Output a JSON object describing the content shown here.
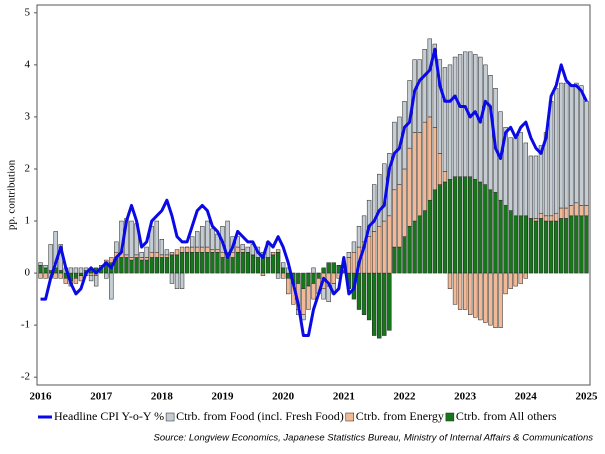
{
  "chart_data": {
    "type": "bar",
    "y_label": "pp. contribution",
    "source": "Source: Longview Economics, Japanese Statistics Bureau, Ministry of Internal Affairs & Communications",
    "categories": [
      "2016",
      null,
      null,
      null,
      null,
      null,
      null,
      null,
      null,
      null,
      null,
      null,
      "2017",
      null,
      null,
      null,
      null,
      null,
      null,
      null,
      null,
      null,
      null,
      null,
      "2018",
      null,
      null,
      null,
      null,
      null,
      null,
      null,
      null,
      null,
      null,
      null,
      "2019",
      null,
      null,
      null,
      null,
      null,
      null,
      null,
      null,
      null,
      null,
      null,
      "2020",
      null,
      null,
      null,
      null,
      null,
      null,
      null,
      null,
      null,
      null,
      null,
      "2021",
      null,
      null,
      null,
      null,
      null,
      null,
      null,
      null,
      null,
      null,
      null,
      "2022",
      null,
      null,
      null,
      null,
      null,
      null,
      null,
      null,
      null,
      null,
      null,
      "2023",
      null,
      null,
      null,
      null,
      null,
      null,
      null,
      null,
      null,
      null,
      null,
      "2024",
      null,
      null,
      null,
      null,
      null,
      null,
      null,
      null,
      null,
      null,
      null,
      "2025"
    ],
    "ylim": [
      -2.15,
      5.15
    ],
    "yticks": [
      -2,
      -1,
      0,
      1,
      2,
      3,
      4,
      5
    ],
    "legend": "bottom",
    "series": [
      {
        "name": "Headline CPI Y-o-Y %",
        "type": "line",
        "color": "#0a0ae6",
        "values": [
          -0.5,
          -0.5,
          -0.1,
          0.2,
          0.5,
          0.1,
          -0.2,
          -0.4,
          -0.3,
          0.0,
          0.1,
          0.0,
          0.1,
          0.2,
          0.1,
          0.3,
          0.4,
          1.0,
          1.3,
          1.0,
          0.5,
          0.6,
          1.0,
          1.1,
          1.2,
          1.4,
          1.1,
          0.7,
          0.6,
          0.6,
          0.9,
          1.2,
          1.3,
          1.2,
          0.9,
          0.8,
          0.6,
          0.3,
          0.5,
          0.8,
          0.7,
          0.6,
          0.6,
          0.4,
          0.3,
          0.6,
          0.5,
          0.7,
          0.5,
          0.2,
          -0.2,
          -0.6,
          -1.2,
          -1.2,
          -0.7,
          -0.4,
          -0.1,
          -0.2,
          -0.4,
          -0.3,
          0.3,
          -0.4,
          -0.3,
          0.2,
          0.5,
          0.9,
          1.0,
          1.2,
          1.3,
          2.0,
          2.3,
          2.4,
          2.8,
          2.9,
          3.5,
          3.7,
          3.8,
          3.9,
          4.3,
          3.6,
          3.3,
          3.3,
          3.4,
          3.2,
          3.2,
          3.0,
          3.1,
          2.9,
          3.3,
          3.2,
          2.4,
          2.2,
          2.7,
          2.8,
          2.6,
          2.8,
          2.9,
          2.6,
          2.4,
          2.3,
          2.6,
          3.4,
          3.6,
          4.0,
          3.7,
          3.6,
          3.6,
          3.5,
          3.3
        ]
      },
      {
        "name": "Ctrb. from Food (incl. Fresh Food)",
        "type": "bar",
        "color": "#c4ccd4",
        "values": [
          0.05,
          0.05,
          0.5,
          0.7,
          0.5,
          0.1,
          0.1,
          0.1,
          0.1,
          0.05,
          -0.1,
          -0.2,
          0.0,
          -0.1,
          -0.5,
          0.2,
          0.6,
          0.7,
          0.7,
          0.6,
          0.1,
          0.2,
          0.5,
          0.6,
          0.3,
          0.1,
          -0.2,
          -0.3,
          -0.3,
          0.0,
          0.2,
          0.3,
          0.4,
          0.5,
          0.4,
          0.3,
          0.5,
          0.6,
          0.3,
          0.2,
          0.1,
          0.1,
          0.2,
          0.2,
          0.1,
          0.3,
          0.0,
          -0.1,
          0.1,
          0.1,
          0.0,
          -0.1,
          -0.1,
          0.0,
          0.1,
          0.0,
          -0.2,
          -0.3,
          -0.2,
          0.0,
          0.0,
          0.1,
          0.2,
          0.4,
          0.5,
          0.7,
          0.9,
          1.0,
          1.1,
          1.2,
          1.3,
          1.3,
          1.3,
          1.3,
          1.4,
          1.4,
          1.4,
          1.5,
          1.6,
          1.8,
          2.0,
          2.2,
          2.3,
          2.35,
          2.4,
          2.4,
          2.4,
          2.4,
          2.3,
          2.2,
          2.0,
          1.7,
          1.5,
          1.4,
          1.5,
          1.6,
          1.4,
          1.2,
          1.2,
          1.3,
          1.6,
          2.2,
          2.4,
          2.4,
          2.4,
          2.3,
          2.3,
          2.3,
          2.0
        ]
      },
      {
        "name": "Ctrb. from Energy",
        "type": "bar",
        "color": "#f2b996",
        "values": [
          -0.1,
          -0.1,
          -0.1,
          -0.1,
          -0.1,
          -0.1,
          -0.1,
          -0.1,
          -0.1,
          -0.05,
          -0.05,
          -0.05,
          0.05,
          0.1,
          0.1,
          0.1,
          0.1,
          0.05,
          0.05,
          0.05,
          0.05,
          0.05,
          0.1,
          0.1,
          0.05,
          0.05,
          0.05,
          0.1,
          0.1,
          0.1,
          0.1,
          0.1,
          0.1,
          0.1,
          0.05,
          0.05,
          0.1,
          0.1,
          0.1,
          0.1,
          0.05,
          0.0,
          0.0,
          0.0,
          -0.05,
          0.0,
          0.05,
          0.05,
          -0.1,
          -0.3,
          -0.4,
          -0.5,
          -0.5,
          -0.45,
          -0.3,
          -0.3,
          -0.3,
          -0.25,
          -0.2,
          -0.1,
          0.1,
          0.3,
          0.4,
          0.5,
          0.6,
          0.7,
          0.8,
          0.9,
          1.0,
          1.1,
          1.1,
          1.2,
          1.3,
          1.5,
          1.7,
          1.6,
          1.7,
          1.6,
          1.2,
          0.6,
          0.2,
          -0.3,
          -0.6,
          -0.7,
          -0.7,
          -0.8,
          -0.85,
          -0.9,
          -0.95,
          -1.0,
          -1.05,
          -1.05,
          -0.4,
          -0.3,
          -0.25,
          -0.2,
          -0.1,
          0.0,
          0.05,
          0.1,
          0.1,
          0.1,
          0.15,
          0.2,
          0.2,
          0.2,
          0.25,
          0.2,
          0.2
        ]
      },
      {
        "name": "Ctrb. from All others",
        "type": "bar",
        "color": "#16761a",
        "values": [
          0.15,
          0.1,
          0.05,
          0.1,
          0.05,
          -0.1,
          -0.15,
          -0.1,
          -0.05,
          0.05,
          0.1,
          0.1,
          0.1,
          0.15,
          0.2,
          0.3,
          0.3,
          0.3,
          0.25,
          0.3,
          0.25,
          0.25,
          0.3,
          0.3,
          0.3,
          0.3,
          0.35,
          0.35,
          0.4,
          0.4,
          0.4,
          0.4,
          0.4,
          0.4,
          0.4,
          0.4,
          0.3,
          0.3,
          0.3,
          0.4,
          0.4,
          0.4,
          0.35,
          0.3,
          0.3,
          0.3,
          0.35,
          0.4,
          0.1,
          -0.1,
          -0.2,
          -0.2,
          -0.3,
          -0.25,
          -0.2,
          -0.1,
          0.1,
          0.2,
          0.2,
          0.15,
          0.05,
          -0.3,
          -0.5,
          -0.7,
          -0.8,
          -0.9,
          -1.2,
          -1.25,
          -1.2,
          -1.1,
          0.5,
          0.5,
          0.7,
          0.9,
          1.0,
          1.1,
          1.2,
          1.4,
          1.6,
          1.7,
          1.75,
          1.8,
          1.85,
          1.85,
          1.85,
          1.85,
          1.8,
          1.75,
          1.7,
          1.6,
          1.55,
          1.4,
          1.3,
          1.2,
          1.1,
          1.1,
          1.1,
          1.05,
          1.0,
          1.05,
          1.0,
          1.0,
          1.0,
          1.05,
          1.05,
          1.1,
          1.1,
          1.1,
          1.1
        ]
      }
    ]
  }
}
